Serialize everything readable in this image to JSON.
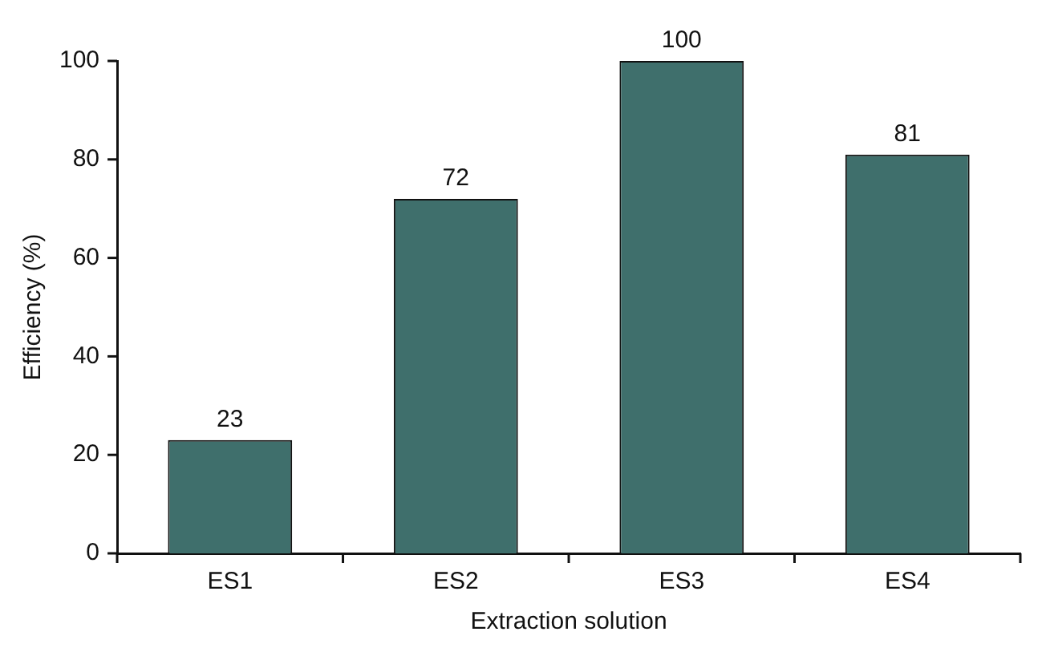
{
  "chart_data": {
    "type": "bar",
    "xlabel": "Extraction solution",
    "ylabel": "Efficiency (%)",
    "categories": [
      "ES1",
      "ES2",
      "ES3",
      "ES4"
    ],
    "values": [
      23,
      72,
      100,
      81
    ],
    "color": "#3f6f6c",
    "ylim": [
      0,
      100
    ],
    "yticks": [
      0,
      20,
      40,
      60,
      80,
      100
    ],
    "data_labels": true,
    "grid": false,
    "legend": false
  }
}
